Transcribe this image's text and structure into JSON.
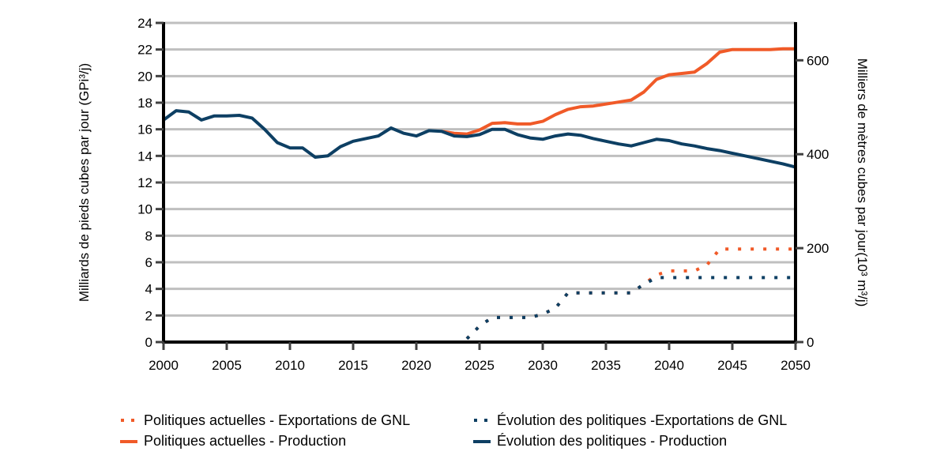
{
  "chart_data": {
    "type": "line",
    "title": "",
    "xlabel": "",
    "ylabel": "Milliards de pieds cubes par jour (GPi³/j)",
    "ylabel_right": "Milliers de mètres cubes par jour(10³ m³/j)",
    "xlim": [
      2000,
      2050
    ],
    "ylim": [
      0,
      24
    ],
    "ylim_right": [
      0,
      679.6
    ],
    "x_ticks": [
      "2000",
      "2005",
      "2010",
      "2015",
      "2020",
      "2025",
      "2030",
      "2035",
      "2040",
      "2045",
      "2050"
    ],
    "y_ticks": [
      "0",
      "2",
      "4",
      "6",
      "8",
      "10",
      "12",
      "14",
      "16",
      "18",
      "20",
      "22",
      "24"
    ],
    "y_ticks_right": [
      "0",
      "200",
      "400",
      "600"
    ],
    "grid": "horizontal",
    "legend_position": "bottom",
    "series": [
      {
        "name": "Politiques actuelles - Exportations de GNL",
        "color": "#F05A28",
        "style": "dotted",
        "x": [
          2024,
          2025,
          2026,
          2027,
          2028,
          2029,
          2030,
          2031,
          2032,
          2033,
          2034,
          2035,
          2036,
          2037,
          2038,
          2039,
          2040,
          2041,
          2042,
          2043,
          2044,
          2045,
          2046,
          2047,
          2048,
          2049,
          2050
        ],
        "values": [
          0.25,
          1.2,
          1.85,
          1.85,
          1.85,
          1.85,
          2.1,
          2.55,
          3.7,
          3.7,
          3.7,
          3.7,
          3.7,
          3.7,
          4.35,
          5.05,
          5.35,
          5.35,
          5.35,
          5.8,
          7.0,
          7.0,
          7.0,
          7.0,
          7.0,
          7.0,
          7.0
        ]
      },
      {
        "name": "Politiques actuelles - Production",
        "color": "#F05A28",
        "style": "solid",
        "x": [
          2022,
          2023,
          2024,
          2025,
          2026,
          2027,
          2028,
          2029,
          2030,
          2031,
          2032,
          2033,
          2034,
          2035,
          2036,
          2037,
          2038,
          2039,
          2040,
          2041,
          2042,
          2043,
          2044,
          2045,
          2046,
          2047,
          2048,
          2049,
          2050
        ],
        "values": [
          15.85,
          15.7,
          15.65,
          15.95,
          16.45,
          16.5,
          16.4,
          16.4,
          16.6,
          17.1,
          17.5,
          17.7,
          17.75,
          17.9,
          18.05,
          18.2,
          18.8,
          19.75,
          20.1,
          20.2,
          20.3,
          20.95,
          21.8,
          22.0,
          22.0,
          22.0,
          22.0,
          22.05,
          22.05
        ]
      },
      {
        "name": "Évolution des politiques -Exportations de GNL",
        "color": "#0D3F63",
        "style": "dotted",
        "x": [
          2024,
          2025,
          2026,
          2027,
          2028,
          2029,
          2030,
          2031,
          2032,
          2033,
          2034,
          2035,
          2036,
          2037,
          2038,
          2039,
          2040,
          2041,
          2042,
          2043,
          2044,
          2045,
          2046,
          2047,
          2048,
          2049,
          2050
        ],
        "values": [
          0.25,
          1.2,
          1.85,
          1.85,
          1.85,
          1.85,
          2.1,
          2.55,
          3.7,
          3.7,
          3.7,
          3.7,
          3.7,
          3.7,
          4.35,
          4.85,
          4.85,
          4.85,
          4.85,
          4.85,
          4.85,
          4.85,
          4.85,
          4.85,
          4.85,
          4.85,
          4.85
        ]
      },
      {
        "name": "Évolution des politiques - Production",
        "color": "#0D3F63",
        "style": "solid",
        "x": [
          2000,
          2001,
          2002,
          2003,
          2004,
          2005,
          2006,
          2007,
          2008,
          2009,
          2010,
          2011,
          2012,
          2013,
          2014,
          2015,
          2016,
          2017,
          2018,
          2019,
          2020,
          2021,
          2022,
          2023,
          2024,
          2025,
          2026,
          2027,
          2028,
          2029,
          2030,
          2031,
          2032,
          2033,
          2034,
          2035,
          2036,
          2037,
          2038,
          2039,
          2040,
          2041,
          2042,
          2043,
          2044,
          2045,
          2046,
          2047,
          2048,
          2049,
          2050
        ],
        "values": [
          16.7,
          17.4,
          17.3,
          16.7,
          17.0,
          17.0,
          17.05,
          16.85,
          16.0,
          15.0,
          14.6,
          14.6,
          13.9,
          14.0,
          14.7,
          15.1,
          15.3,
          15.5,
          16.1,
          15.7,
          15.5,
          15.9,
          15.85,
          15.5,
          15.45,
          15.6,
          16.0,
          16.0,
          15.6,
          15.35,
          15.25,
          15.5,
          15.65,
          15.55,
          15.3,
          15.1,
          14.9,
          14.75,
          15.0,
          15.25,
          15.15,
          14.9,
          14.75,
          14.55,
          14.4,
          14.2,
          14.0,
          13.8,
          13.6,
          13.4,
          13.15
        ]
      }
    ]
  },
  "legend": {
    "items": [
      {
        "label": "Politiques actuelles - Exportations de GNL",
        "color": "#F05A28",
        "style": "dotted"
      },
      {
        "label": "Évolution des politiques -Exportations de GNL",
        "color": "#0D3F63",
        "style": "dotted"
      },
      {
        "label": "Politiques actuelles - Production",
        "color": "#F05A28",
        "style": "solid"
      },
      {
        "label": "Évolution des politiques - Production",
        "color": "#0D3F63",
        "style": "solid"
      }
    ]
  },
  "colors": {
    "grid": "#BFBFBF",
    "axis": "#000000",
    "tick": "#404040"
  }
}
